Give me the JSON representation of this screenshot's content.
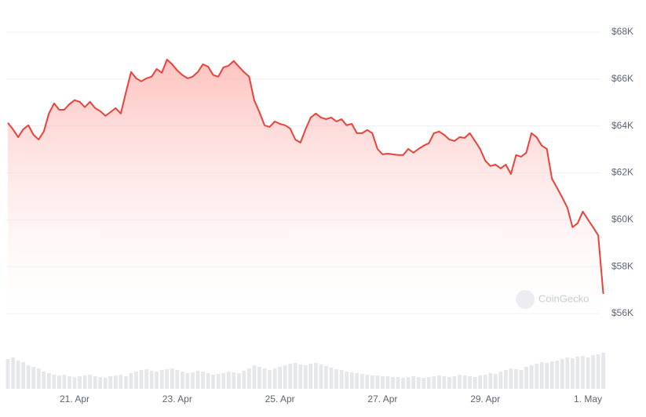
{
  "chart_data": {
    "type": "line",
    "watermark": "CoinGecko",
    "categories": [
      null,
      null,
      null,
      null,
      null,
      null,
      null,
      null,
      null,
      null,
      null,
      null,
      null,
      "21. Apr",
      null,
      null,
      null,
      null,
      null,
      null,
      null,
      null,
      null,
      null,
      null,
      null,
      null,
      null,
      null,
      null,
      null,
      null,
      null,
      "23. Apr",
      null,
      null,
      null,
      null,
      null,
      null,
      null,
      null,
      null,
      null,
      null,
      null,
      null,
      null,
      null,
      null,
      null,
      null,
      null,
      "25. Apr",
      null,
      null,
      null,
      null,
      null,
      null,
      null,
      null,
      null,
      null,
      null,
      null,
      null,
      null,
      null,
      null,
      null,
      null,
      null,
      "27. Apr",
      null,
      null,
      null,
      null,
      null,
      null,
      null,
      null,
      null,
      null,
      null,
      null,
      null,
      null,
      null,
      null,
      null,
      null,
      null,
      "29. Apr",
      null,
      null,
      null,
      null,
      null,
      null,
      null,
      null,
      null,
      null,
      null,
      null,
      null,
      null,
      null,
      null,
      null,
      null,
      null,
      "1. May",
      null,
      null,
      null
    ],
    "series": [
      {
        "color": "#e8423b",
        "values": [
          64130,
          63860,
          63520,
          63860,
          64030,
          63620,
          63420,
          63760,
          64530,
          64960,
          64690,
          64690,
          64930,
          65100,
          65030,
          64800,
          65030,
          64760,
          64630,
          64430,
          64590,
          64760,
          64530,
          65430,
          66300,
          66030,
          65900,
          66030,
          66100,
          66430,
          66270,
          66830,
          66630,
          66370,
          66170,
          66030,
          66100,
          66300,
          66630,
          66530,
          66170,
          66100,
          66500,
          66570,
          66770,
          66530,
          66300,
          66100,
          65100,
          64590,
          64030,
          63960,
          64190,
          64090,
          64030,
          63890,
          63420,
          63290,
          63860,
          64360,
          64530,
          64360,
          64290,
          64360,
          64190,
          64290,
          64030,
          64090,
          63690,
          63690,
          63830,
          63690,
          63020,
          62790,
          62820,
          62790,
          62760,
          62760,
          63020,
          62860,
          63020,
          63160,
          63260,
          63690,
          63760,
          63620,
          63420,
          63360,
          63520,
          63490,
          63690,
          63360,
          63020,
          62520,
          62290,
          62350,
          62190,
          62350,
          61950,
          62760,
          62690,
          62860,
          63690,
          63520,
          63160,
          63020,
          61750,
          61350,
          60950,
          60510,
          59680,
          59850,
          60350,
          60010,
          59680,
          59340,
          56840
        ]
      },
      {
        "color": "#e6e7ea",
        "axis": "y2",
        "values": [
          38,
          40,
          36,
          34,
          30,
          28,
          26,
          22,
          20,
          18,
          17,
          18,
          16,
          15,
          16,
          17,
          18,
          16,
          15,
          14,
          16,
          17,
          18,
          16,
          20,
          22,
          24,
          25,
          23,
          22,
          24,
          25,
          26,
          24,
          22,
          20,
          21,
          23,
          22,
          20,
          18,
          19,
          20,
          22,
          21,
          20,
          23,
          26,
          30,
          28,
          26,
          24,
          26,
          28,
          30,
          32,
          33,
          31,
          30,
          32,
          33,
          31,
          29,
          27,
          25,
          24,
          22,
          21,
          20,
          19,
          18,
          17,
          17,
          16,
          16,
          15,
          15,
          14,
          15,
          16,
          15,
          14,
          15,
          16,
          17,
          16,
          15,
          16,
          18,
          17,
          16,
          15,
          17,
          18,
          20,
          19,
          22,
          24,
          26,
          25,
          24,
          28,
          30,
          32,
          34,
          33,
          35,
          36,
          38,
          40,
          39,
          41,
          42,
          40,
          43,
          44,
          46
        ]
      }
    ],
    "ylim": [
      55700,
      68200
    ],
    "yticks": [
      {
        "value": 56000,
        "label": "$56K"
      },
      {
        "value": 58000,
        "label": "$58K"
      },
      {
        "value": 60000,
        "label": "$60K"
      },
      {
        "value": 62000,
        "label": "$62K"
      },
      {
        "value": 64000,
        "label": "$64K"
      },
      {
        "value": 66000,
        "label": "$66K"
      },
      {
        "value": 68000,
        "label": "$68K"
      }
    ],
    "y2lim": [
      0,
      100
    ],
    "grid": true
  }
}
